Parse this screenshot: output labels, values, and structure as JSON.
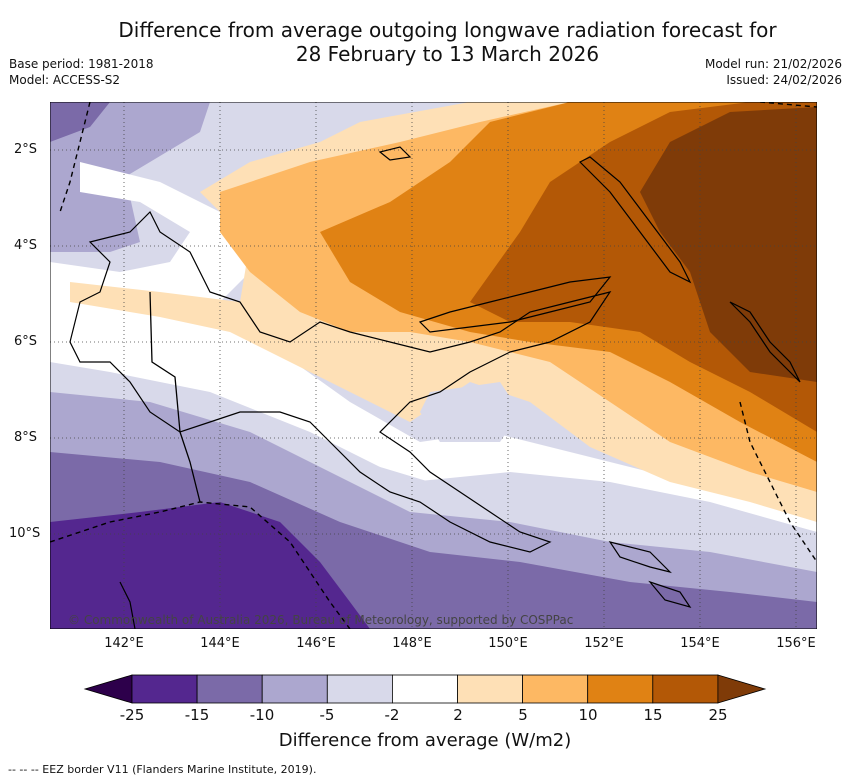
{
  "title_line1": "Difference from average outgoing longwave radiation forecast for",
  "title_line2": "28 February to 13 March 2026",
  "base_period": "Base period: 1981-2018",
  "model": "Model: ACCESS-S2",
  "model_run": "Model run: 21/02/2026",
  "issued": "Issued: 24/02/2026",
  "copyright": "© Commonwealth of Australia 2026, Bureau of Meteorology, supported by COSPPac",
  "latitudes": [
    "2°S",
    "4°S",
    "6°S",
    "8°S",
    "10°S"
  ],
  "longitudes": [
    "142°E",
    "144°E",
    "146°E",
    "148°E",
    "150°E",
    "152°E",
    "154°E",
    "156°E"
  ],
  "colorbar": {
    "labels": [
      "-25",
      "-15",
      "-10",
      "-5",
      "-2",
      "2",
      "5",
      "10",
      "15",
      "25"
    ],
    "colors": [
      "#54278f",
      "#7b6aa8",
      "#aca7cf",
      "#d8d9ea",
      "#ffffff",
      "#fee0b6",
      "#fdb863",
      "#e08214",
      "#b35806",
      "#7f3b08"
    ],
    "under_color": "#2d004b",
    "over_color": "#7f3b08",
    "title": "Difference from average (W/m2)"
  },
  "footer": "--  --  -- EEZ border V11 (Flanders Marine Institute, 2019)."
}
